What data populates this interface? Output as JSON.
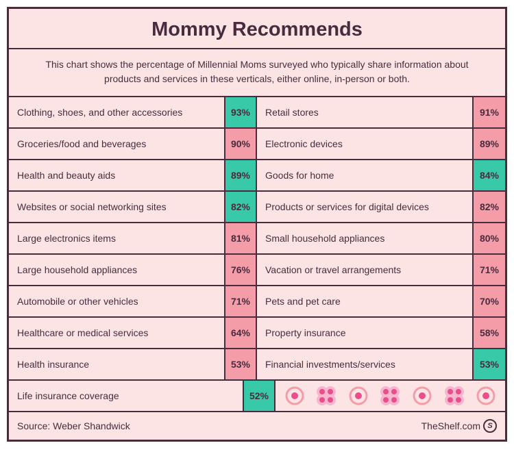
{
  "title": "Mommy Recommends",
  "subtitle": "This chart shows the percentage of Millennial Moms surveyed who typically share information about products and services in these verticals, either online, in-person or both.",
  "colors": {
    "border": "#4a2b3e",
    "bg": "#fce4e4",
    "teal": "#37c9a8",
    "pink": "#f49ca8",
    "flowerPink": "#e84f8a",
    "flowerLight": "#f7b5cf",
    "donutOuter": "#f49ca8",
    "donutInner": "#e84f8a"
  },
  "rows": [
    {
      "leftLabel": "Clothing, shoes, and other accessories",
      "leftPct": "93%",
      "leftColor": "teal",
      "rightLabel": "Retail stores",
      "rightPct": "91%",
      "rightColor": "pink"
    },
    {
      "leftLabel": "Groceries/food and beverages",
      "leftPct": "90%",
      "leftColor": "pink",
      "rightLabel": "Electronic devices",
      "rightPct": "89%",
      "rightColor": "pink"
    },
    {
      "leftLabel": "Health and beauty aids",
      "leftPct": "89%",
      "leftColor": "teal",
      "rightLabel": "Goods for home",
      "rightPct": "84%",
      "rightColor": "teal"
    },
    {
      "leftLabel": "Websites or social networking sites",
      "leftPct": "82%",
      "leftColor": "teal",
      "rightLabel": "Products or services for digital devices",
      "rightPct": "82%",
      "rightColor": "pink"
    },
    {
      "leftLabel": "Large electronics items",
      "leftPct": "81%",
      "leftColor": "pink",
      "rightLabel": "Small household appliances",
      "rightPct": "80%",
      "rightColor": "pink"
    },
    {
      "leftLabel": "Large household appliances",
      "leftPct": "76%",
      "leftColor": "pink",
      "rightLabel": "Vacation or travel arrangements",
      "rightPct": "71%",
      "rightColor": "pink"
    },
    {
      "leftLabel": "Automobile or other vehicles",
      "leftPct": "71%",
      "leftColor": "pink",
      "rightLabel": "Pets and pet care",
      "rightPct": "70%",
      "rightColor": "pink"
    },
    {
      "leftLabel": "Healthcare or medical services",
      "leftPct": "64%",
      "leftColor": "pink",
      "rightLabel": "Property insurance",
      "rightPct": "58%",
      "rightColor": "pink"
    },
    {
      "leftLabel": "Health insurance",
      "leftPct": "53%",
      "leftColor": "pink",
      "rightLabel": "Financial investments/services",
      "rightPct": "53%",
      "rightColor": "teal"
    }
  ],
  "lastRow": {
    "label": "Life insurance coverage",
    "pct": "52%",
    "color": "teal"
  },
  "flowerSequence": [
    "donut",
    "flower",
    "donut",
    "flower",
    "donut",
    "flower",
    "donut"
  ],
  "source": "Source: Weber Shandwick",
  "brand": "TheShelf.com",
  "fontSizes": {
    "title": 29,
    "subtitle": 14,
    "label": 14,
    "pct": 14,
    "footer": 14
  }
}
